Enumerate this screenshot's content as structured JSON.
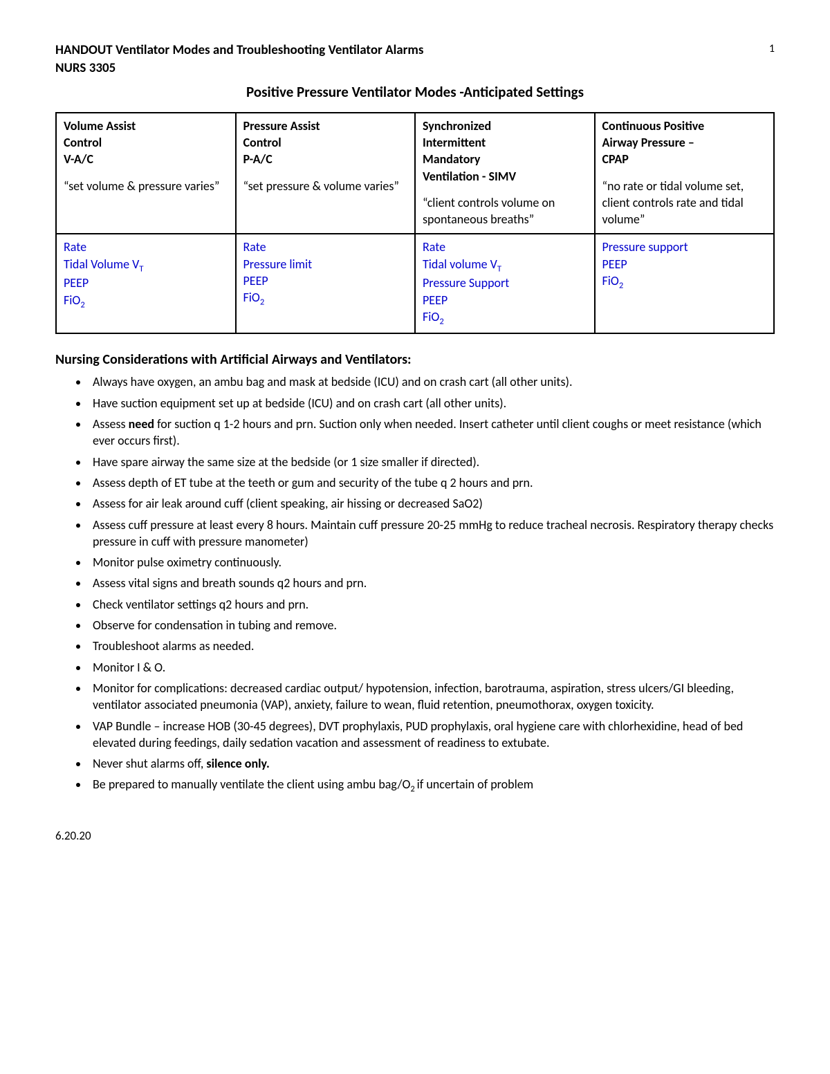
{
  "header": {
    "title": "HANDOUT Ventilator Modes and Troubleshooting Ventilator Alarms",
    "course": "NURS 3305",
    "page_number": "1"
  },
  "main_title": "Positive Pressure Ventilator Modes -Anticipated Settings",
  "table": {
    "columns": [
      {
        "name_lines": [
          "Volume Assist",
          "Control",
          "V-A/C"
        ],
        "desc": "“set volume & pressure varies”",
        "settings": [
          "Rate",
          "Tidal Volume V",
          "PEEP",
          "FiO"
        ],
        "settings_sub": [
          "",
          "T",
          "",
          "2"
        ]
      },
      {
        "name_lines": [
          "Pressure Assist",
          "Control",
          "P-A/C"
        ],
        "desc": "“set pressure & volume varies”",
        "settings": [
          "Rate",
          "Pressure limit",
          "PEEP",
          "FiO"
        ],
        "settings_sub": [
          "",
          "",
          "",
          "2"
        ]
      },
      {
        "name_lines": [
          "Synchronized",
          "Intermittent",
          "Mandatory",
          "Ventilation - SIMV"
        ],
        "desc": "“client controls volume on spontaneous breaths”",
        "settings": [
          "Rate",
          "Tidal volume V",
          "Pressure Support",
          "PEEP",
          "FiO"
        ],
        "settings_sub": [
          "",
          "T",
          "",
          "",
          "2"
        ]
      },
      {
        "name_lines": [
          "Continuous Positive",
          "Airway Pressure –",
          "CPAP"
        ],
        "desc": "“no rate or tidal volume set, client controls rate and tidal volume”",
        "settings": [
          "Pressure support",
          "PEEP",
          "FiO"
        ],
        "settings_sub": [
          "",
          "",
          "2"
        ]
      }
    ]
  },
  "section_heading": "Nursing Considerations with Artificial Airways and Ventilators:",
  "bullets": [
    {
      "text": "Always have oxygen, an ambu bag and mask at bedside (ICU) and on crash cart (all other units)."
    },
    {
      "text": "Have suction equipment set up at bedside (ICU) and on crash cart (all other units)."
    },
    {
      "pre": "Assess ",
      "bold": "need",
      "post": " for suction q 1-2 hours and prn. Suction only when needed.  Insert catheter until client coughs or meet resistance (which ever occurs first)."
    },
    {
      "text": "Have spare airway the same size at the bedside (or 1 size smaller if directed)."
    },
    {
      "text": "Assess depth of ET tube at the teeth or gum and security of the tube q 2 hours and prn."
    },
    {
      "text": "Assess for air leak around cuff (client speaking, air hissing or decreased SaO2)"
    },
    {
      "text": "Assess cuff pressure at least every 8 hours.  Maintain cuff pressure 20-25 mmHg to reduce tracheal necrosis.  Respiratory therapy checks pressure in cuff with pressure manometer)"
    },
    {
      "text": "Monitor pulse oximetry continuously."
    },
    {
      "text": "Assess vital signs and breath sounds q2 hours and prn."
    },
    {
      "text": "Check ventilator settings q2 hours and prn."
    },
    {
      "text": "Observe for condensation in tubing and remove."
    },
    {
      "text": "Troubleshoot alarms as needed."
    },
    {
      "text": "Monitor I & O."
    },
    {
      "text": "Monitor for complications:  decreased cardiac output/ hypotension, infection, barotrauma, aspiration, stress ulcers/GI bleeding, ventilator associated pneumonia (VAP), anxiety, failure to wean, fluid retention, pneumothorax, oxygen toxicity."
    },
    {
      "text": "VAP Bundle – increase HOB (30-45 degrees), DVT prophylaxis, PUD prophylaxis, oral hygiene care with chlorhexidine, head of bed elevated during feedings, daily sedation vacation and assessment of readiness to extubate."
    },
    {
      "pre": "Never shut alarms off, ",
      "bold": "silence only.",
      "post": ""
    },
    {
      "pre": "Be prepared to manually ventilate the client using ambu bag/O",
      "sub": "2 ",
      "post": "if uncertain of problem"
    }
  ],
  "footer_date": "6.20.20"
}
